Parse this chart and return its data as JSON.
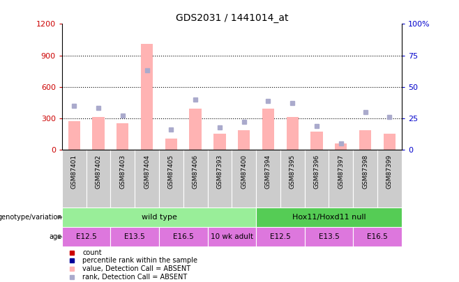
{
  "title": "GDS2031 / 1441014_at",
  "samples": [
    "GSM87401",
    "GSM87402",
    "GSM87403",
    "GSM87404",
    "GSM87405",
    "GSM87406",
    "GSM87393",
    "GSM87400",
    "GSM87394",
    "GSM87395",
    "GSM87396",
    "GSM87397",
    "GSM87398",
    "GSM87399"
  ],
  "bar_values": [
    270,
    315,
    255,
    1010,
    110,
    390,
    155,
    185,
    390,
    310,
    175,
    60,
    185,
    155
  ],
  "bar_color_absent": "#ffb3b3",
  "dot_values_pct": [
    35,
    33,
    27,
    63,
    16,
    40,
    18,
    22,
    39,
    37,
    19,
    5,
    30,
    26
  ],
  "dot_color_absent": "#aaaacc",
  "ylim_left": [
    0,
    1200
  ],
  "ylim_right": [
    0,
    100
  ],
  "yticks_left": [
    0,
    300,
    600,
    900,
    1200
  ],
  "ytick_labels_left": [
    "0",
    "300",
    "600",
    "900",
    "1200"
  ],
  "yticks_right": [
    0,
    25,
    50,
    75,
    100
  ],
  "ytick_labels_right": [
    "0",
    "25",
    "50",
    "75",
    "100%"
  ],
  "left_tick_color": "#cc0000",
  "right_tick_color": "#0000cc",
  "genotype_groups": [
    {
      "label": "wild type",
      "start": 0,
      "end": 8,
      "color": "#99ee99"
    },
    {
      "label": "Hox11/Hoxd11 null",
      "start": 8,
      "end": 14,
      "color": "#55cc55"
    }
  ],
  "age_groups": [
    {
      "label": "E12.5",
      "start": 0,
      "end": 2
    },
    {
      "label": "E13.5",
      "start": 2,
      "end": 4
    },
    {
      "label": "E16.5",
      "start": 4,
      "end": 6
    },
    {
      "label": "10 wk adult",
      "start": 6,
      "end": 8
    },
    {
      "label": "E12.5",
      "start": 8,
      "end": 10
    },
    {
      "label": "E13.5",
      "start": 10,
      "end": 12
    },
    {
      "label": "E16.5",
      "start": 12,
      "end": 14
    }
  ],
  "age_color": "#dd77dd",
  "sample_bg_color": "#cccccc",
  "legend_items": [
    {
      "label": "count",
      "color": "#cc0000"
    },
    {
      "label": "percentile rank within the sample",
      "color": "#000099"
    },
    {
      "label": "value, Detection Call = ABSENT",
      "color": "#ffb3b3"
    },
    {
      "label": "rank, Detection Call = ABSENT",
      "color": "#aaaacc"
    }
  ],
  "background_color": "#ffffff",
  "grid_color": "#000000"
}
